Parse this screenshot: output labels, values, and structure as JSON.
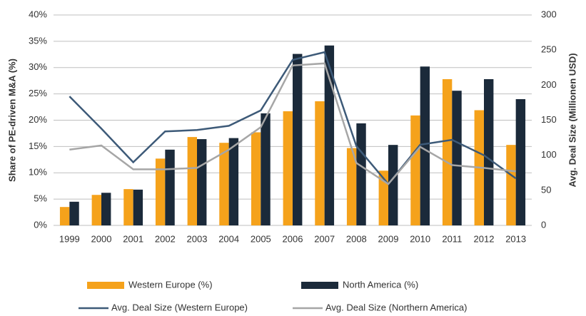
{
  "chart_data": {
    "type": "bar",
    "categories": [
      "1999",
      "2000",
      "2001",
      "2002",
      "2003",
      "2004",
      "2005",
      "2006",
      "2007",
      "2008",
      "2009",
      "2010",
      "2011",
      "2012",
      "2013"
    ],
    "ylabel": "Share of PE-driven M&A (%)",
    "y2label": "Avg. Deal Size (Millionen USD)",
    "ylim": [
      0,
      40
    ],
    "yticks": [
      {
        "value": 0,
        "label": "0%"
      },
      {
        "value": 5,
        "label": "5%"
      },
      {
        "value": 10,
        "label": "10%"
      },
      {
        "value": 15,
        "label": "15%"
      },
      {
        "value": 20,
        "label": "20%"
      },
      {
        "value": 25,
        "label": "25%"
      },
      {
        "value": 30,
        "label": "30%"
      },
      {
        "value": 35,
        "label": "35%"
      },
      {
        "value": 40,
        "label": "40%"
      }
    ],
    "y2lim": [
      0,
      300
    ],
    "y2ticks": [
      0,
      50,
      100,
      150,
      200,
      250,
      300
    ],
    "grid": true,
    "legend": "bottom",
    "series": [
      {
        "name": "Western Europe (%)",
        "type": "bar",
        "color": "#f5a21b",
        "values": [
          3.5,
          5.8,
          6.9,
          12.7,
          16.8,
          15.7,
          17.7,
          21.7,
          23.6,
          14.7,
          10.4,
          20.9,
          27.8,
          21.9,
          15.3
        ]
      },
      {
        "name": "North America (%)",
        "type": "bar",
        "color": "#1b2a3a",
        "values": [
          4.5,
          6.2,
          6.8,
          14.4,
          16.4,
          16.6,
          21.3,
          32.6,
          34.2,
          19.4,
          15.3,
          30.2,
          25.6,
          27.8,
          24.0
        ]
      },
      {
        "name": "Avg. Deal Size (Western Europe)",
        "type": "line",
        "axis": "y2",
        "color": "#3d5a78",
        "values": [
          184,
          138,
          90,
          134,
          136,
          142,
          164,
          236,
          247,
          113,
          59,
          115,
          122,
          100,
          67
        ]
      },
      {
        "name": "Avg. Deal Size (Northern America)",
        "type": "line",
        "axis": "y2",
        "color": "#a6a6a6",
        "values": [
          108,
          114,
          80,
          80,
          82,
          108,
          140,
          228,
          231,
          89,
          59,
          112,
          86,
          82,
          77
        ]
      }
    ]
  }
}
